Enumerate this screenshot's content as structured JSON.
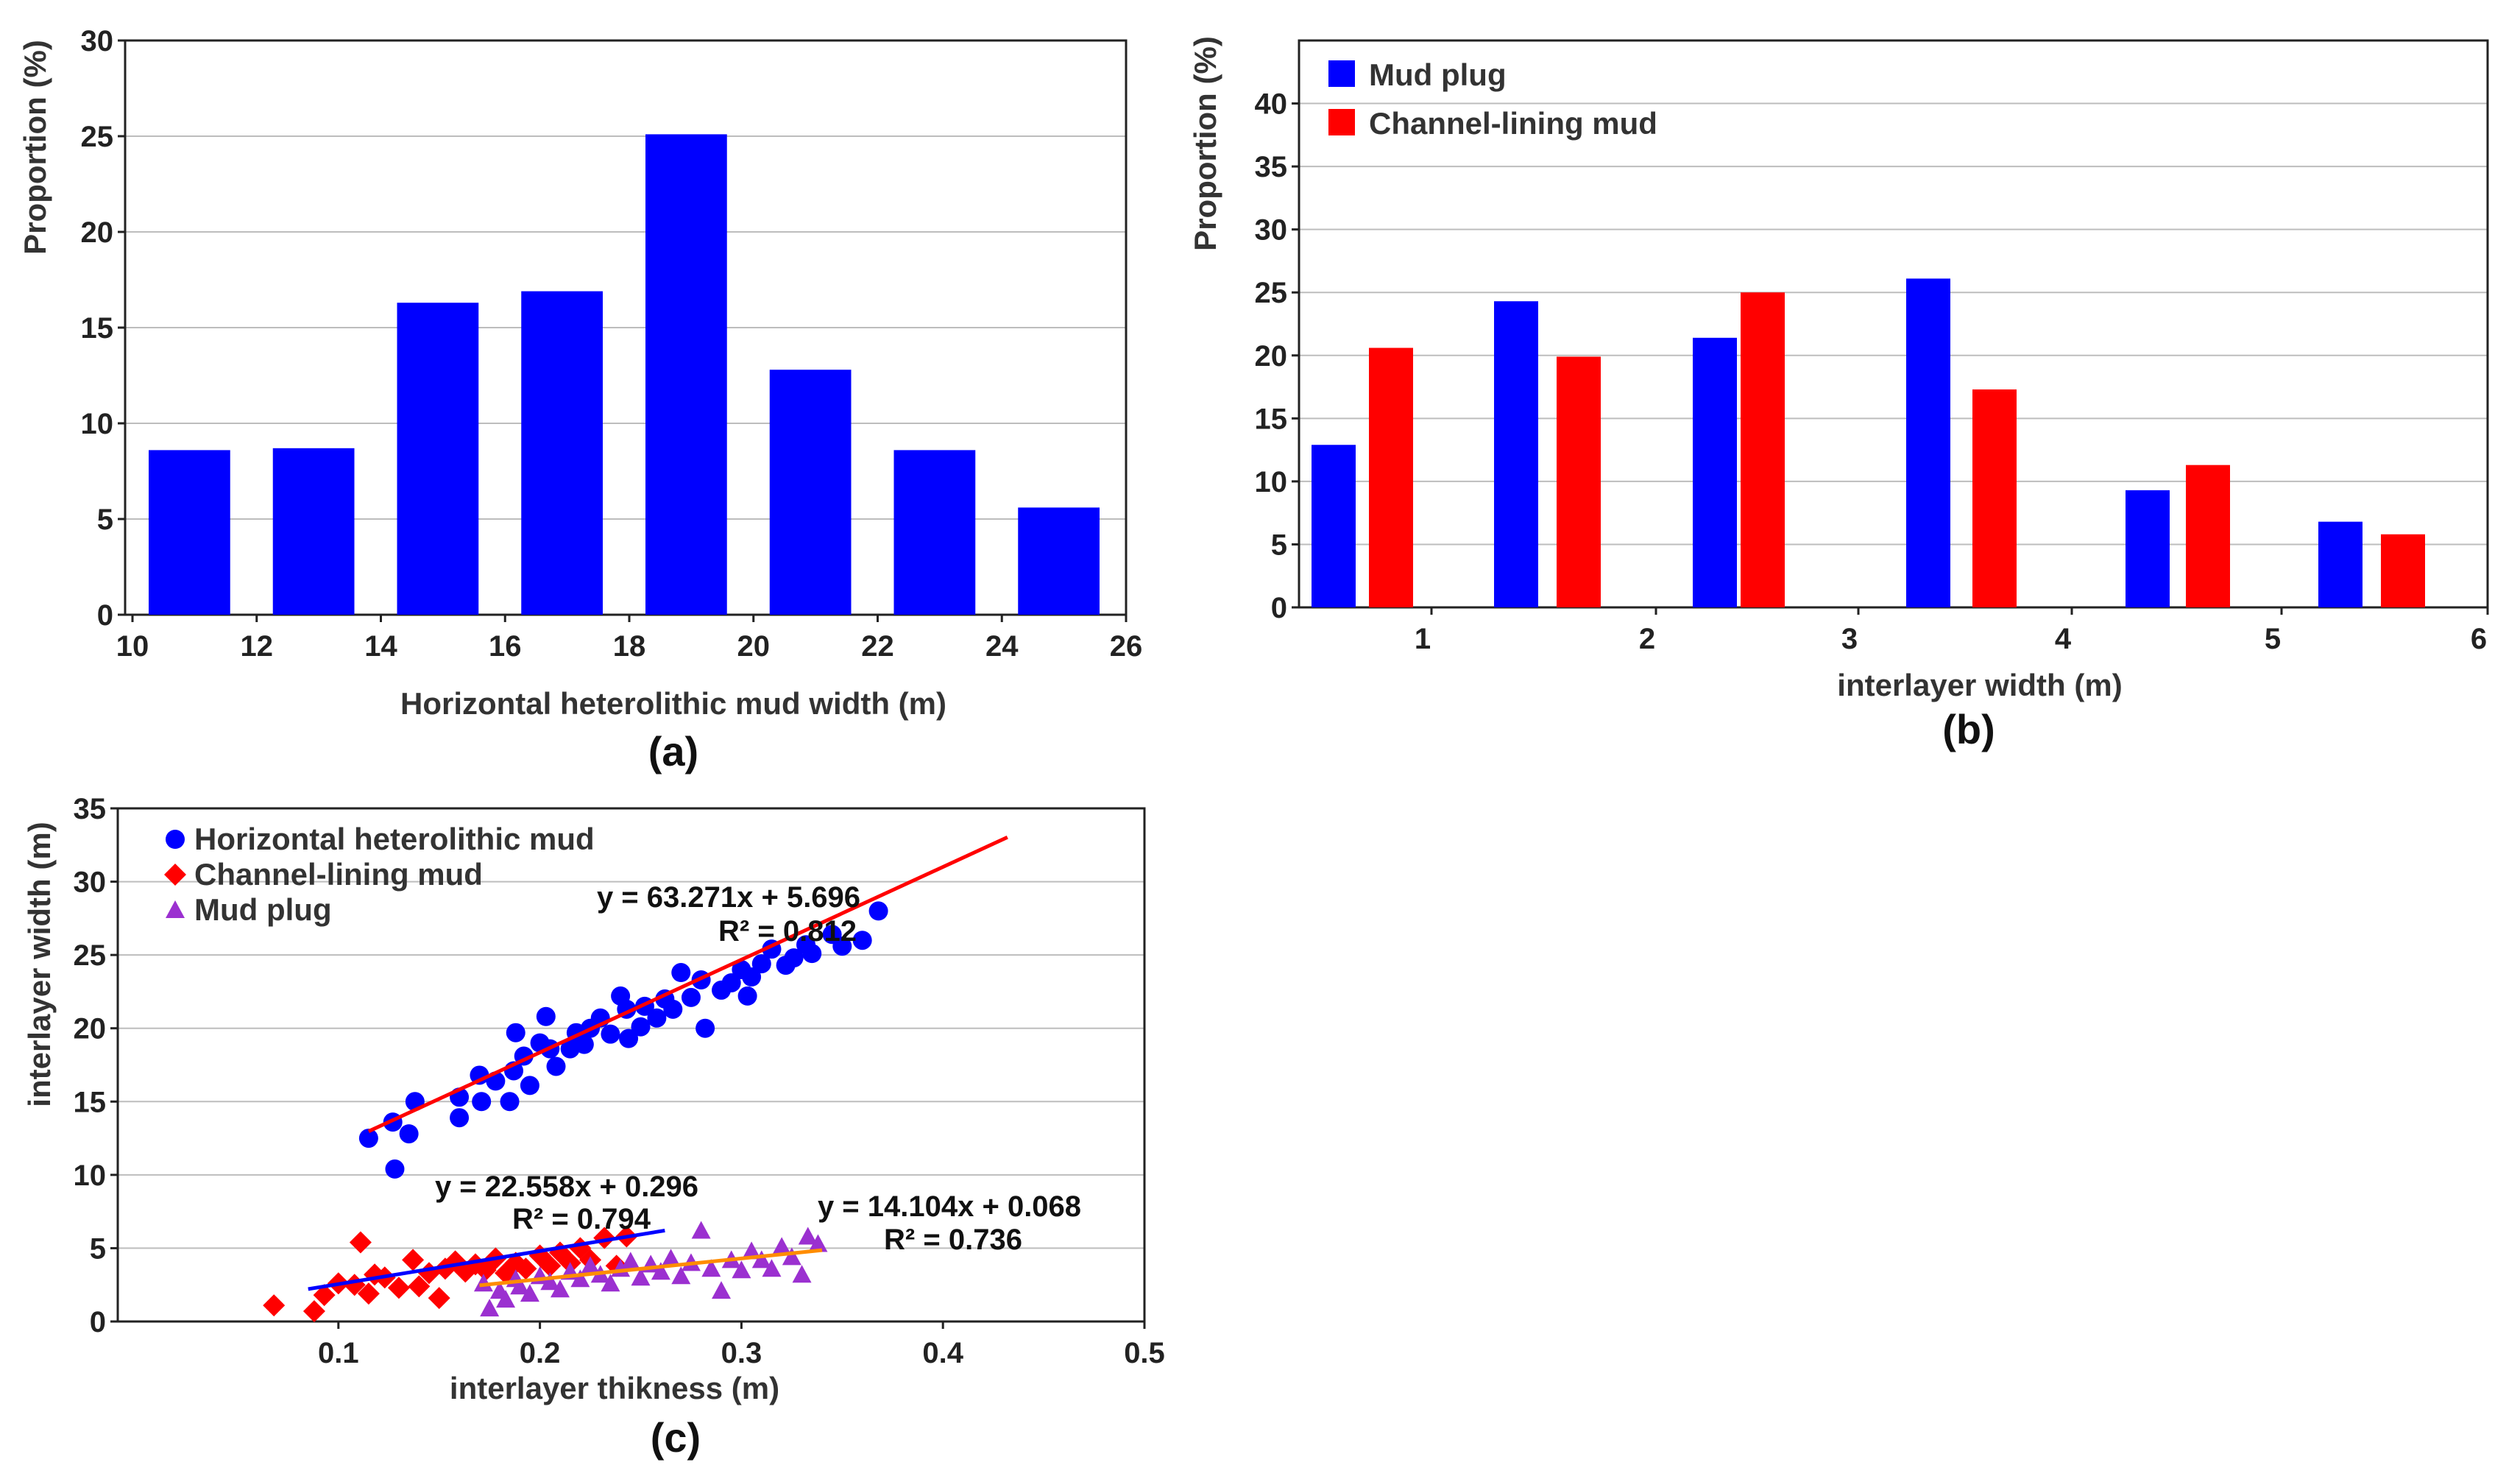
{
  "chart_data": [
    {
      "type": "bar",
      "panel_label": "(a)",
      "xlabel": "Horizontal heterolithic mud  width (m)",
      "ylabel": "Proportion (%)",
      "xlim": [
        10,
        26
      ],
      "ylim": [
        0,
        30
      ],
      "xticks": [
        "10",
        "12",
        "14",
        "16",
        "18",
        "20",
        "22",
        "24",
        "26"
      ],
      "yticks": [
        "0",
        "5",
        "10",
        "15",
        "20",
        "25",
        "30"
      ],
      "grid": true,
      "color": "#0000ff",
      "bins": [
        [
          10,
          12
        ],
        [
          12,
          14
        ],
        [
          14,
          16
        ],
        [
          16,
          18
        ],
        [
          18,
          20
        ],
        [
          20,
          22
        ],
        [
          22,
          24
        ],
        [
          24,
          26
        ]
      ],
      "values": [
        8.6,
        8.7,
        16.3,
        16.9,
        25.1,
        12.8,
        8.6,
        5.6
      ]
    },
    {
      "type": "bar",
      "panel_label": "(b)",
      "xlabel": "interlayer  width (m)",
      "ylabel": "Proportion (%)",
      "xlim": [
        0.5,
        6
      ],
      "ylim": [
        0,
        45
      ],
      "xticks": [
        "1",
        "2",
        "3",
        "4",
        "5",
        "6"
      ],
      "yticks": [
        "0",
        "5",
        "10",
        "15",
        "20",
        "25",
        "30",
        "35",
        "40"
      ],
      "grid": true,
      "legend_position": "top-left",
      "categories": [
        "0.5-1",
        "1-2",
        "2-3",
        "3-4",
        "4-5",
        "5-6"
      ],
      "series": [
        {
          "name": "Mud plug",
          "color": "#0000ff",
          "values": [
            12.9,
            24.3,
            21.4,
            26.1,
            9.3,
            6.8
          ]
        },
        {
          "name": "Channel-lining mud",
          "color": "#ff0000",
          "values": [
            20.6,
            19.9,
            25.0,
            17.3,
            11.3,
            5.8
          ]
        }
      ]
    },
    {
      "type": "scatter",
      "panel_label": "(c)",
      "xlabel": "interlayer  thikness (m)",
      "ylabel": "interlayer  width (m)",
      "xlim": [
        0,
        0.5
      ],
      "ylim": [
        0,
        35
      ],
      "xticks": [
        "0.1",
        "0.2",
        "0.3",
        "0.4",
        "0.5"
      ],
      "yticks": [
        "0",
        "5",
        "10",
        "15",
        "20",
        "25",
        "30",
        "35"
      ],
      "grid": true,
      "legend_position": "top-left",
      "series": [
        {
          "name": "Horizontal heterolithic mud",
          "color": "#0000ff",
          "marker": "circle",
          "equation": "y = 63.271x + 5.696",
          "r2": "R² = 0.812",
          "fit": {
            "color": "#ff0000",
            "x": [
              0.115,
              0.432
            ]
          },
          "points": [
            [
              0.115,
              12.5
            ],
            [
              0.127,
              13.6
            ],
            [
              0.128,
              10.4
            ],
            [
              0.135,
              12.8
            ],
            [
              0.138,
              15.0
            ],
            [
              0.16,
              15.3
            ],
            [
              0.16,
              13.9
            ],
            [
              0.17,
              16.8
            ],
            [
              0.171,
              15.0
            ],
            [
              0.178,
              16.4
            ],
            [
              0.185,
              15.0
            ],
            [
              0.187,
              17.1
            ],
            [
              0.188,
              19.7
            ],
            [
              0.192,
              18.1
            ],
            [
              0.195,
              16.1
            ],
            [
              0.2,
              19.0
            ],
            [
              0.203,
              20.8
            ],
            [
              0.205,
              18.6
            ],
            [
              0.208,
              17.4
            ],
            [
              0.215,
              18.6
            ],
            [
              0.218,
              19.7
            ],
            [
              0.222,
              18.9
            ],
            [
              0.225,
              20.0
            ],
            [
              0.23,
              20.7
            ],
            [
              0.235,
              19.6
            ],
            [
              0.24,
              22.2
            ],
            [
              0.243,
              21.3
            ],
            [
              0.244,
              19.3
            ],
            [
              0.25,
              20.1
            ],
            [
              0.252,
              21.5
            ],
            [
              0.258,
              20.7
            ],
            [
              0.262,
              22.0
            ],
            [
              0.266,
              21.3
            ],
            [
              0.27,
              23.8
            ],
            [
              0.275,
              22.1
            ],
            [
              0.28,
              23.3
            ],
            [
              0.282,
              20.0
            ],
            [
              0.29,
              22.6
            ],
            [
              0.295,
              23.1
            ],
            [
              0.3,
              24.0
            ],
            [
              0.303,
              22.2
            ],
            [
              0.305,
              23.5
            ],
            [
              0.31,
              24.4
            ],
            [
              0.315,
              25.4
            ],
            [
              0.322,
              24.3
            ],
            [
              0.326,
              24.8
            ],
            [
              0.332,
              25.7
            ],
            [
              0.335,
              25.1
            ],
            [
              0.345,
              26.4
            ],
            [
              0.35,
              25.6
            ],
            [
              0.36,
              26.0
            ],
            [
              0.368,
              28.0
            ]
          ]
        },
        {
          "name": "Channel-lining mud",
          "color": "#ff0000",
          "marker": "diamond",
          "equation": "y = 22.558x + 0.296",
          "r2": "R² = 0.794",
          "fit": {
            "color": "#0000ff",
            "x": [
              0.085,
              0.262
            ]
          },
          "points": [
            [
              0.068,
              1.1
            ],
            [
              0.088,
              0.7
            ],
            [
              0.093,
              1.8
            ],
            [
              0.1,
              2.6
            ],
            [
              0.108,
              2.5
            ],
            [
              0.111,
              5.4
            ],
            [
              0.115,
              1.9
            ],
            [
              0.118,
              3.2
            ],
            [
              0.123,
              3.0
            ],
            [
              0.13,
              2.3
            ],
            [
              0.137,
              4.2
            ],
            [
              0.14,
              2.4
            ],
            [
              0.145,
              3.3
            ],
            [
              0.15,
              1.6
            ],
            [
              0.153,
              3.6
            ],
            [
              0.158,
              4.1
            ],
            [
              0.163,
              3.4
            ],
            [
              0.168,
              3.9
            ],
            [
              0.173,
              3.5
            ],
            [
              0.178,
              4.3
            ],
            [
              0.183,
              3.3
            ],
            [
              0.188,
              4.0
            ],
            [
              0.193,
              3.6
            ],
            [
              0.2,
              4.5
            ],
            [
              0.205,
              3.8
            ],
            [
              0.21,
              4.7
            ],
            [
              0.215,
              4.0
            ],
            [
              0.22,
              5.0
            ],
            [
              0.225,
              4.2
            ],
            [
              0.232,
              5.7
            ],
            [
              0.238,
              3.8
            ],
            [
              0.243,
              5.8
            ]
          ]
        },
        {
          "name": "Mud plug",
          "color": "#9b30d0",
          "marker": "triangle",
          "equation": "y = 14.104x + 0.068",
          "r2": "R² = 0.736",
          "fit": {
            "color": "#ff8c00",
            "x": [
              0.17,
              0.34
            ]
          },
          "points": [
            [
              0.172,
              2.6
            ],
            [
              0.175,
              0.9
            ],
            [
              0.18,
              2.1
            ],
            [
              0.183,
              1.5
            ],
            [
              0.188,
              2.9
            ],
            [
              0.19,
              2.4
            ],
            [
              0.195,
              1.9
            ],
            [
              0.2,
              3.1
            ],
            [
              0.205,
              2.7
            ],
            [
              0.21,
              2.2
            ],
            [
              0.215,
              3.4
            ],
            [
              0.22,
              2.9
            ],
            [
              0.225,
              3.8
            ],
            [
              0.23,
              3.2
            ],
            [
              0.235,
              2.6
            ],
            [
              0.24,
              3.6
            ],
            [
              0.245,
              4.1
            ],
            [
              0.25,
              3.0
            ],
            [
              0.255,
              3.9
            ],
            [
              0.26,
              3.4
            ],
            [
              0.265,
              4.3
            ],
            [
              0.27,
              3.1
            ],
            [
              0.275,
              4.0
            ],
            [
              0.28,
              6.2
            ],
            [
              0.285,
              3.6
            ],
            [
              0.29,
              2.1
            ],
            [
              0.295,
              4.2
            ],
            [
              0.3,
              3.5
            ],
            [
              0.305,
              4.8
            ],
            [
              0.31,
              4.2
            ],
            [
              0.315,
              3.6
            ],
            [
              0.32,
              5.1
            ],
            [
              0.325,
              4.4
            ],
            [
              0.33,
              3.2
            ],
            [
              0.333,
              5.8
            ],
            [
              0.338,
              5.3
            ]
          ]
        }
      ]
    }
  ]
}
